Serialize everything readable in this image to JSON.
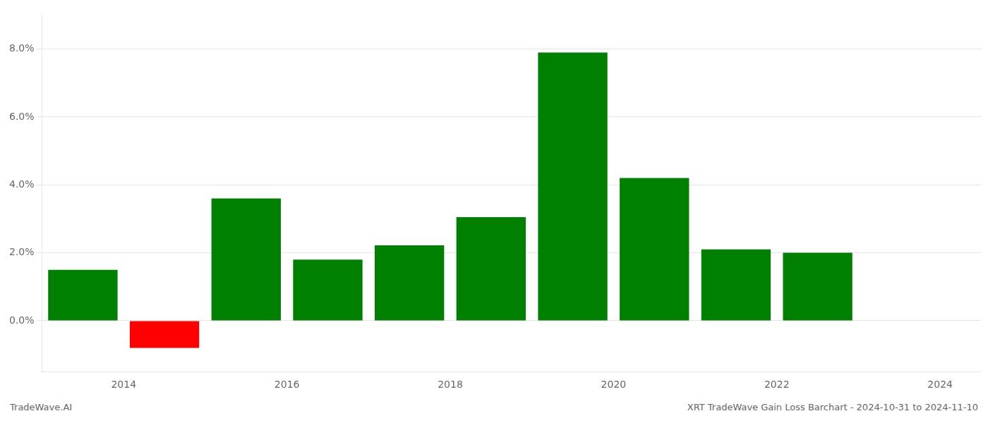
{
  "chart_data": {
    "type": "bar",
    "x": [
      2013.5,
      2014.5,
      2015.5,
      2016.5,
      2017.5,
      2018.5,
      2019.5,
      2020.5,
      2021.5,
      2022.5
    ],
    "values": [
      1.5,
      -0.8,
      3.6,
      1.8,
      2.22,
      3.05,
      7.9,
      4.2,
      2.1,
      2.0
    ],
    "colors": [
      "#008000",
      "#ff0000",
      "#008000",
      "#008000",
      "#008000",
      "#008000",
      "#008000",
      "#008000",
      "#008000",
      "#008000"
    ],
    "xlim": [
      2013.0,
      2024.5
    ],
    "xticks": [
      2014,
      2016,
      2018,
      2020,
      2022,
      2024
    ],
    "ylim": [
      -1.5,
      9.0
    ],
    "yticks": [
      {
        "value": 0.0,
        "label": "0.0%"
      },
      {
        "value": 2.0,
        "label": "2.0%"
      },
      {
        "value": 4.0,
        "label": "4.0%"
      },
      {
        "value": 6.0,
        "label": "6.0%"
      },
      {
        "value": 8.0,
        "label": "8.0%"
      }
    ],
    "grid": "y",
    "annotations": [
      "TradeWave.AI",
      "XRT TradeWave Gain Loss Barchart - 2024-10-31 to 2024-11-10"
    ]
  }
}
